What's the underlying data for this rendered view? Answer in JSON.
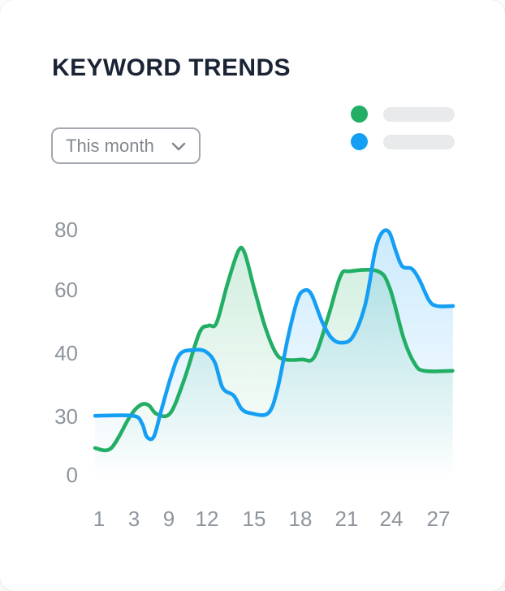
{
  "header": {
    "title": "KEYWORD TRENDS"
  },
  "filter_dropdown": {
    "value": "This month",
    "icon": "chevron-down-icon"
  },
  "legend": {
    "items": [
      {
        "dot_color": "#22ae64",
        "placeholder_bar": true
      },
      {
        "dot_color": "#159ff4",
        "placeholder_bar": true
      }
    ]
  },
  "chart_data": {
    "type": "area",
    "title": "KEYWORD TRENDS",
    "grid": false,
    "legend_position": "top-right",
    "x_axis": {
      "tick_labels": [
        "1",
        "3",
        "9",
        "12",
        "15",
        "18",
        "21",
        "24",
        "27"
      ]
    },
    "y_axis": {
      "tick_labels": [
        "80",
        "60",
        "40",
        "30",
        "0"
      ],
      "note_ticks_evenly_spaced": true
    },
    "series": [
      {
        "name": "series-1-green",
        "color": "#22ae64",
        "points": [
          [
            0.77,
            13.8
          ],
          [
            1.7,
            13.8
          ],
          [
            2.77,
            30.0
          ],
          [
            4.1,
            31.8
          ],
          [
            5.5,
            31.8
          ],
          [
            6.9,
            30.4
          ],
          [
            9.1,
            30.5
          ],
          [
            10.2,
            35.8
          ],
          [
            11.4,
            46.4
          ],
          [
            12.1,
            48.7
          ],
          [
            12.6,
            49.5
          ],
          [
            13.3,
            61.9
          ],
          [
            14.0,
            73.0
          ],
          [
            14.4,
            72.2
          ],
          [
            15.0,
            60.5
          ],
          [
            15.7,
            48.5
          ],
          [
            16.4,
            40.1
          ],
          [
            17.0,
            39.0
          ],
          [
            18.1,
            39.0
          ],
          [
            18.9,
            39.4
          ],
          [
            19.8,
            51.5
          ],
          [
            20.6,
            64.6
          ],
          [
            21.2,
            66.2
          ],
          [
            23.1,
            66.2
          ],
          [
            23.9,
            60.5
          ],
          [
            24.8,
            44.4
          ],
          [
            25.5,
            38.3
          ],
          [
            26.1,
            37.2
          ],
          [
            27.9,
            37.2
          ]
        ]
      },
      {
        "name": "series-2-blue",
        "color": "#159ff4",
        "points": [
          [
            0.77,
            30.1
          ],
          [
            2.95,
            30.1
          ],
          [
            4.4,
            26.3
          ],
          [
            5.2,
            19.6
          ],
          [
            6.4,
            19.6
          ],
          [
            7.7,
            31.0
          ],
          [
            9.2,
            36.5
          ],
          [
            9.9,
            39.9
          ],
          [
            11.0,
            41.0
          ],
          [
            11.9,
            40.5
          ],
          [
            12.5,
            38.5
          ],
          [
            13.0,
            34.5
          ],
          [
            13.7,
            33.3
          ],
          [
            14.2,
            31.2
          ],
          [
            14.8,
            30.5
          ],
          [
            15.9,
            30.5
          ],
          [
            16.5,
            34.2
          ],
          [
            17.2,
            45.1
          ],
          [
            17.8,
            56.7
          ],
          [
            18.2,
            59.7
          ],
          [
            18.7,
            58.7
          ],
          [
            19.4,
            50.0
          ],
          [
            20.0,
            44.9
          ],
          [
            20.6,
            43.3
          ],
          [
            21.4,
            45.1
          ],
          [
            22.25,
            55.4
          ],
          [
            22.9,
            72.7
          ],
          [
            23.35,
            78.9
          ],
          [
            23.85,
            79.2
          ],
          [
            24.3,
            72.7
          ],
          [
            24.7,
            67.8
          ],
          [
            25.3,
            67.0
          ],
          [
            25.8,
            63.2
          ],
          [
            26.4,
            56.7
          ],
          [
            26.9,
            54.9
          ],
          [
            27.93,
            54.9
          ]
        ]
      }
    ]
  },
  "colors": {
    "title": "#1b2434",
    "axis_label": "#8f959d",
    "legend_bar": "#e9eaec",
    "dropdown_border": "#a3a8b0",
    "dropdown_text": "#83888f"
  }
}
